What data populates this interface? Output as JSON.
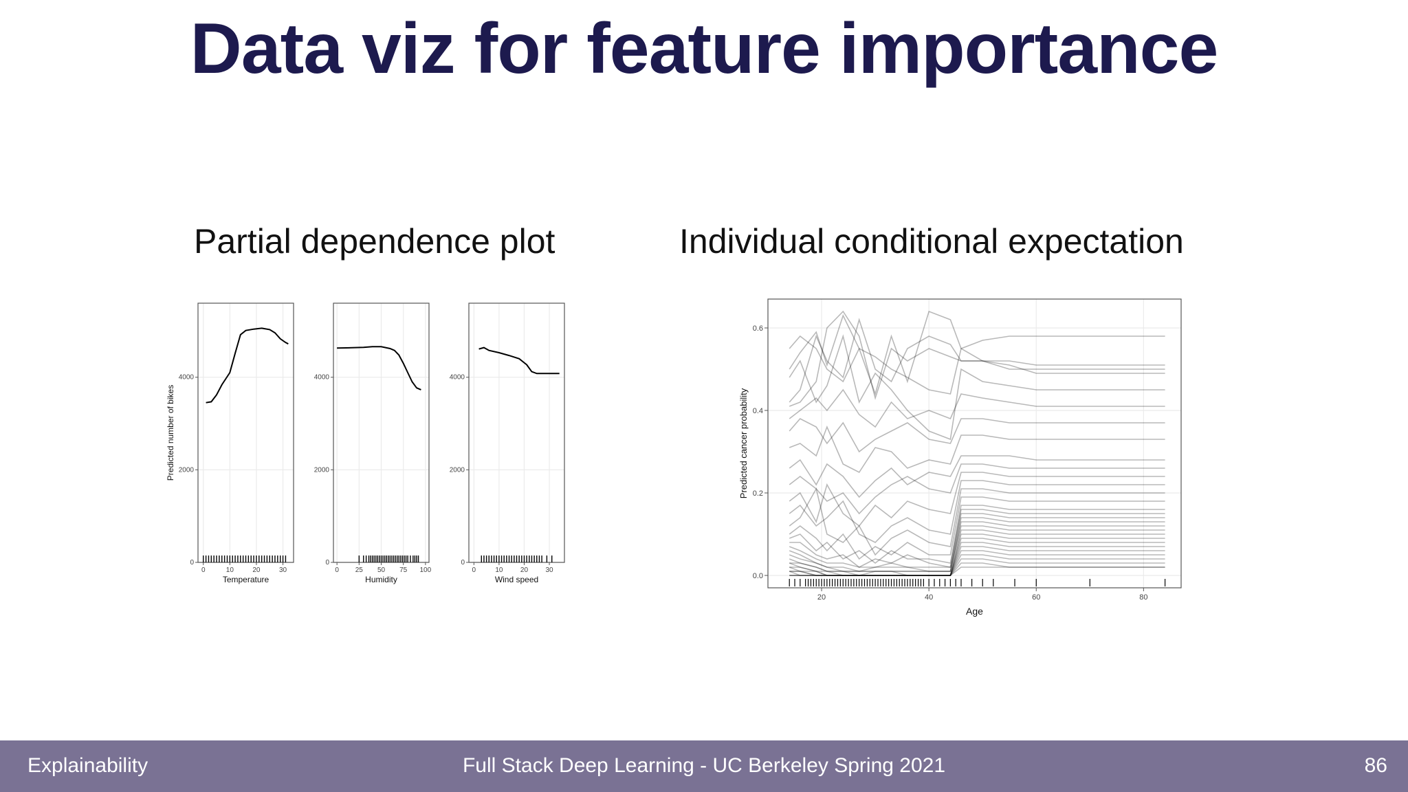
{
  "slide": {
    "title": "Data viz for feature importance",
    "pdp_subtitle": "Partial dependence plot",
    "ice_subtitle": "Individual conditional expectation"
  },
  "footer": {
    "left": "Explainability",
    "center": "Full Stack Deep Learning - UC Berkeley Spring 2021",
    "page_number": "86"
  },
  "colors": {
    "title": "#1d1a4e",
    "footer_bg": "#7a7294",
    "line": "#000000",
    "grid": "#ebebeb"
  },
  "chart_data": [
    {
      "type": "line",
      "title": "Partial dependence plot",
      "ylabel": "Predicted number of bikes",
      "ylim": [
        0,
        5600
      ],
      "yticks": [
        0,
        2000,
        4000
      ],
      "panels": [
        {
          "xlabel": "Temperature",
          "xlim": [
            -2,
            34
          ],
          "xticks": [
            0,
            10,
            20,
            30
          ],
          "x": [
            1,
            3,
            5,
            7,
            10,
            12,
            14,
            16,
            19,
            22,
            25,
            27,
            29,
            31,
            32
          ],
          "y": [
            3450,
            3470,
            3620,
            3840,
            4100,
            4520,
            4920,
            5010,
            5040,
            5060,
            5030,
            4960,
            4830,
            4750,
            4720
          ],
          "rug": [
            0,
            1,
            2,
            3,
            4,
            5,
            6,
            7,
            8,
            9,
            10,
            11,
            12,
            13,
            14,
            15,
            16,
            17,
            18,
            19,
            20,
            21,
            22,
            23,
            24,
            25,
            26,
            27,
            28,
            29,
            30,
            31
          ]
        },
        {
          "xlabel": "Humidity",
          "xlim": [
            -4,
            104
          ],
          "xticks": [
            0,
            25,
            50,
            75,
            100
          ],
          "x": [
            0,
            10,
            20,
            30,
            40,
            50,
            60,
            65,
            70,
            75,
            80,
            85,
            90,
            95
          ],
          "y": [
            4630,
            4635,
            4640,
            4645,
            4660,
            4660,
            4620,
            4580,
            4480,
            4300,
            4100,
            3900,
            3770,
            3730
          ],
          "rug": [
            25,
            30,
            33,
            36,
            38,
            40,
            42,
            44,
            46,
            48,
            50,
            52,
            54,
            56,
            58,
            60,
            62,
            64,
            66,
            68,
            70,
            72,
            74,
            76,
            78,
            80,
            83,
            86,
            88,
            90,
            92
          ]
        },
        {
          "xlabel": "Wind speed",
          "xlim": [
            -2,
            36
          ],
          "xticks": [
            0,
            10,
            20,
            30
          ],
          "x": [
            2,
            4,
            6,
            10,
            14,
            18,
            21,
            23,
            25,
            27,
            30,
            34
          ],
          "y": [
            4610,
            4640,
            4580,
            4530,
            4470,
            4400,
            4270,
            4120,
            4080,
            4080,
            4080,
            4080
          ],
          "rug": [
            3,
            4,
            5,
            6,
            7,
            8,
            9,
            10,
            11,
            12,
            13,
            14,
            15,
            16,
            17,
            18,
            19,
            20,
            21,
            22,
            23,
            24,
            25,
            26,
            27,
            29,
            31
          ]
        }
      ]
    },
    {
      "type": "line",
      "title": "Individual conditional expectation",
      "xlabel": "Age",
      "ylabel": "Predicted cancer probability",
      "xlim": [
        10,
        87
      ],
      "ylim": [
        -0.03,
        0.67
      ],
      "xticks": [
        20,
        40,
        60,
        80
      ],
      "yticks": [
        0.0,
        0.2,
        0.4,
        0.6
      ],
      "ytick_labels": [
        "0.0",
        "0.2",
        "0.4",
        "0.6"
      ],
      "x": [
        14,
        16,
        19,
        21,
        24,
        27,
        30,
        33,
        36,
        40,
        44,
        46,
        50,
        55,
        60,
        65,
        70,
        84
      ],
      "series": [
        {
          "name": "ice-1",
          "values": [
            0.55,
            0.58,
            0.55,
            0.5,
            0.47,
            0.55,
            0.53,
            0.5,
            0.48,
            0.45,
            0.44,
            0.55,
            0.57,
            0.58,
            0.58,
            0.58,
            0.58,
            0.58
          ]
        },
        {
          "name": "ice-2",
          "values": [
            0.42,
            0.45,
            0.58,
            0.52,
            0.48,
            0.62,
            0.5,
            0.47,
            0.55,
            0.58,
            0.56,
            0.52,
            0.52,
            0.52,
            0.51,
            0.51,
            0.51,
            0.51
          ]
        },
        {
          "name": "ice-3",
          "values": [
            0.5,
            0.54,
            0.59,
            0.51,
            0.63,
            0.55,
            0.44,
            0.58,
            0.47,
            0.64,
            0.62,
            0.55,
            0.52,
            0.5,
            0.5,
            0.5,
            0.5,
            0.5
          ]
        },
        {
          "name": "ice-4",
          "values": [
            0.41,
            0.42,
            0.47,
            0.6,
            0.64,
            0.58,
            0.43,
            0.55,
            0.52,
            0.55,
            0.53,
            0.52,
            0.52,
            0.51,
            0.49,
            0.49,
            0.49,
            0.49
          ]
        },
        {
          "name": "ice-5",
          "values": [
            0.48,
            0.52,
            0.42,
            0.46,
            0.58,
            0.42,
            0.49,
            0.45,
            0.4,
            0.35,
            0.33,
            0.5,
            0.47,
            0.46,
            0.45,
            0.45,
            0.45,
            0.45
          ]
        },
        {
          "name": "ice-6",
          "values": [
            0.38,
            0.4,
            0.43,
            0.4,
            0.45,
            0.39,
            0.36,
            0.42,
            0.38,
            0.4,
            0.38,
            0.44,
            0.43,
            0.42,
            0.41,
            0.41,
            0.41,
            0.41
          ]
        },
        {
          "name": "ice-7",
          "values": [
            0.35,
            0.38,
            0.36,
            0.32,
            0.37,
            0.3,
            0.33,
            0.35,
            0.37,
            0.33,
            0.32,
            0.38,
            0.38,
            0.37,
            0.37,
            0.37,
            0.37,
            0.37
          ]
        },
        {
          "name": "ice-8",
          "values": [
            0.31,
            0.32,
            0.29,
            0.36,
            0.27,
            0.25,
            0.31,
            0.3,
            0.26,
            0.28,
            0.27,
            0.34,
            0.34,
            0.33,
            0.33,
            0.33,
            0.33,
            0.33
          ]
        },
        {
          "name": "ice-9",
          "values": [
            0.26,
            0.28,
            0.22,
            0.27,
            0.24,
            0.19,
            0.23,
            0.26,
            0.22,
            0.25,
            0.24,
            0.29,
            0.29,
            0.29,
            0.28,
            0.28,
            0.28,
            0.28
          ]
        },
        {
          "name": "ice-10",
          "values": [
            0.22,
            0.24,
            0.21,
            0.18,
            0.2,
            0.15,
            0.19,
            0.22,
            0.24,
            0.21,
            0.2,
            0.27,
            0.27,
            0.26,
            0.26,
            0.26,
            0.26,
            0.26
          ]
        },
        {
          "name": "ice-11",
          "values": [
            0.18,
            0.2,
            0.13,
            0.22,
            0.15,
            0.12,
            0.17,
            0.14,
            0.18,
            0.16,
            0.15,
            0.25,
            0.25,
            0.24,
            0.24,
            0.24,
            0.24,
            0.24
          ]
        },
        {
          "name": "ice-12",
          "values": [
            0.15,
            0.17,
            0.12,
            0.14,
            0.18,
            0.1,
            0.08,
            0.12,
            0.14,
            0.11,
            0.1,
            0.23,
            0.23,
            0.22,
            0.22,
            0.22,
            0.22,
            0.22
          ]
        },
        {
          "name": "ice-13",
          "values": [
            0.12,
            0.14,
            0.21,
            0.1,
            0.08,
            0.12,
            0.05,
            0.09,
            0.11,
            0.08,
            0.07,
            0.21,
            0.21,
            0.2,
            0.2,
            0.2,
            0.2,
            0.2
          ]
        },
        {
          "name": "ice-14",
          "values": [
            0.1,
            0.12,
            0.09,
            0.06,
            0.1,
            0.04,
            0.07,
            0.05,
            0.08,
            0.05,
            0.05,
            0.19,
            0.19,
            0.18,
            0.18,
            0.18,
            0.18,
            0.18
          ]
        },
        {
          "name": "ice-15",
          "values": [
            0.09,
            0.1,
            0.06,
            0.08,
            0.04,
            0.06,
            0.03,
            0.06,
            0.04,
            0.04,
            0.03,
            0.17,
            0.17,
            0.16,
            0.16,
            0.16,
            0.16,
            0.16
          ]
        },
        {
          "name": "ice-16",
          "values": [
            0.08,
            0.08,
            0.05,
            0.04,
            0.05,
            0.02,
            0.04,
            0.03,
            0.05,
            0.03,
            0.02,
            0.16,
            0.16,
            0.15,
            0.15,
            0.15,
            0.15,
            0.15
          ]
        },
        {
          "name": "ice-17",
          "values": [
            0.07,
            0.06,
            0.04,
            0.03,
            0.03,
            0.02,
            0.02,
            0.03,
            0.02,
            0.02,
            0.02,
            0.15,
            0.15,
            0.14,
            0.14,
            0.14,
            0.14,
            0.14
          ]
        },
        {
          "name": "ice-18",
          "values": [
            0.06,
            0.05,
            0.03,
            0.02,
            0.02,
            0.01,
            0.02,
            0.02,
            0.02,
            0.01,
            0.01,
            0.14,
            0.14,
            0.13,
            0.13,
            0.13,
            0.13,
            0.13
          ]
        },
        {
          "name": "ice-19",
          "values": [
            0.05,
            0.04,
            0.03,
            0.02,
            0.01,
            0.01,
            0.01,
            0.01,
            0.01,
            0.01,
            0.01,
            0.13,
            0.13,
            0.12,
            0.12,
            0.12,
            0.12,
            0.12
          ]
        },
        {
          "name": "ice-20",
          "values": [
            0.04,
            0.03,
            0.02,
            0.01,
            0.01,
            0.01,
            0.01,
            0.01,
            0.01,
            0.01,
            0.01,
            0.12,
            0.12,
            0.11,
            0.11,
            0.11,
            0.11,
            0.11
          ]
        },
        {
          "name": "ice-21",
          "values": [
            0.03,
            0.03,
            0.02,
            0.01,
            0.01,
            0.0,
            0.01,
            0.01,
            0.0,
            0.0,
            0.0,
            0.11,
            0.11,
            0.1,
            0.1,
            0.1,
            0.1,
            0.1
          ]
        },
        {
          "name": "ice-22",
          "values": [
            0.03,
            0.02,
            0.01,
            0.01,
            0.0,
            0.0,
            0.0,
            0.0,
            0.0,
            0.0,
            0.0,
            0.1,
            0.1,
            0.09,
            0.09,
            0.09,
            0.09,
            0.09
          ]
        },
        {
          "name": "ice-23",
          "values": [
            0.02,
            0.02,
            0.01,
            0.0,
            0.0,
            0.0,
            0.0,
            0.0,
            0.0,
            0.0,
            0.0,
            0.09,
            0.09,
            0.08,
            0.08,
            0.08,
            0.08,
            0.08
          ]
        },
        {
          "name": "ice-24",
          "values": [
            0.02,
            0.01,
            0.01,
            0.0,
            0.0,
            0.0,
            0.0,
            0.0,
            0.0,
            0.0,
            0.0,
            0.08,
            0.08,
            0.07,
            0.07,
            0.07,
            0.07,
            0.07
          ]
        },
        {
          "name": "ice-25",
          "values": [
            0.01,
            0.01,
            0.0,
            0.0,
            0.0,
            0.0,
            0.0,
            0.0,
            0.0,
            0.0,
            0.0,
            0.07,
            0.07,
            0.06,
            0.06,
            0.06,
            0.06,
            0.06
          ]
        },
        {
          "name": "ice-26",
          "values": [
            0.01,
            0.01,
            0.0,
            0.0,
            0.0,
            0.0,
            0.0,
            0.0,
            0.0,
            0.0,
            0.0,
            0.06,
            0.06,
            0.05,
            0.05,
            0.05,
            0.05,
            0.05
          ]
        },
        {
          "name": "ice-27",
          "values": [
            0.01,
            0.0,
            0.0,
            0.0,
            0.0,
            0.0,
            0.0,
            0.0,
            0.0,
            0.0,
            0.0,
            0.05,
            0.05,
            0.04,
            0.04,
            0.04,
            0.04,
            0.04
          ]
        },
        {
          "name": "ice-28",
          "values": [
            0.0,
            0.0,
            0.0,
            0.0,
            0.0,
            0.0,
            0.0,
            0.0,
            0.0,
            0.0,
            0.0,
            0.04,
            0.04,
            0.03,
            0.03,
            0.03,
            0.03,
            0.03
          ]
        },
        {
          "name": "ice-29",
          "values": [
            0.0,
            0.0,
            0.0,
            0.0,
            0.0,
            0.0,
            0.0,
            0.0,
            0.0,
            0.0,
            0.0,
            0.03,
            0.03,
            0.02,
            0.02,
            0.02,
            0.02,
            0.02
          ]
        },
        {
          "name": "ice-30",
          "values": [
            0.0,
            0.0,
            0.0,
            0.0,
            0.0,
            0.0,
            0.0,
            0.0,
            0.0,
            0.0,
            0.0,
            0.02,
            0.02,
            0.02,
            0.02,
            0.02,
            0.02,
            0.02
          ]
        }
      ],
      "rug": [
        14,
        15,
        16,
        17,
        17.5,
        18,
        18.5,
        19,
        19.5,
        20,
        20.5,
        21,
        21.5,
        22,
        22.5,
        23,
        23.5,
        24,
        24.5,
        25,
        25.5,
        26,
        26.5,
        27,
        27.5,
        28,
        28.5,
        29,
        29.5,
        30,
        30.5,
        31,
        31.5,
        32,
        32.5,
        33,
        33.5,
        34,
        34.5,
        35,
        35.5,
        36,
        36.5,
        37,
        37.5,
        38,
        38.5,
        39,
        40,
        41,
        42,
        43,
        44,
        45,
        46,
        48,
        50,
        52,
        56,
        60,
        70,
        84
      ]
    }
  ]
}
